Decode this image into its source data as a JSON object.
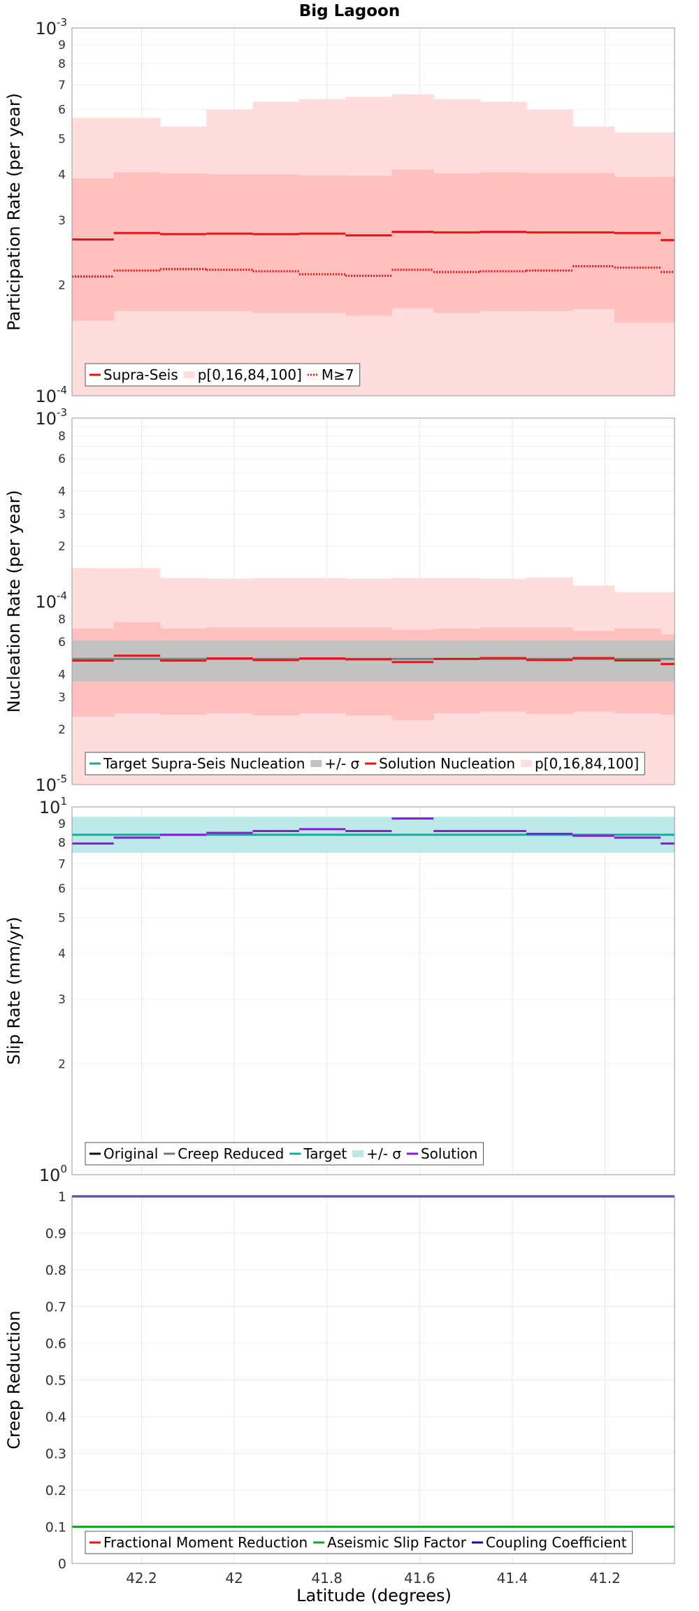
{
  "figure_title": "Big Lagoon",
  "x_axis": {
    "label": "Latitude (degrees)",
    "min": 41.05,
    "max": 42.35,
    "reversed": true,
    "ticks": [
      42.2,
      42.0,
      41.8,
      41.6,
      41.4,
      41.2
    ],
    "tick_labels": [
      "42.2",
      "42",
      "41.8",
      "41.6",
      "41.4",
      "41.2"
    ]
  },
  "colors": {
    "solution_red": "#ee1111",
    "band_outer": "#ffdddd",
    "band_inner": "#ffc0c0",
    "target_gray": "#6a8c8c",
    "sigma_gray": "#c2c2c2",
    "target_teal": "#1aa99b",
    "sigma_teal": "#bde8e8",
    "slip_solution_purple": "#8a1bd8",
    "aseismic_green": "#11aa11",
    "coupling_blue": "#1111aa"
  },
  "chart_data": [
    {
      "id": "participation",
      "type": "line",
      "ylabel": "Participation Rate (per year)",
      "yscale": "log",
      "ylim": [
        0.0001,
        0.001
      ],
      "grid": true,
      "segments": [
        {
          "x0": 42.35,
          "x1": 42.26
        },
        {
          "x0": 42.26,
          "x1": 42.16
        },
        {
          "x0": 42.16,
          "x1": 42.06
        },
        {
          "x0": 42.06,
          "x1": 41.96
        },
        {
          "x0": 41.96,
          "x1": 41.86
        },
        {
          "x0": 41.86,
          "x1": 41.76
        },
        {
          "x0": 41.76,
          "x1": 41.66
        },
        {
          "x0": 41.66,
          "x1": 41.57
        },
        {
          "x0": 41.57,
          "x1": 41.47
        },
        {
          "x0": 41.47,
          "x1": 41.37
        },
        {
          "x0": 41.37,
          "x1": 41.27
        },
        {
          "x0": 41.27,
          "x1": 41.18
        },
        {
          "x0": 41.18,
          "x1": 41.08
        },
        {
          "x0": 41.08,
          "x1": 41.05
        }
      ],
      "series": [
        {
          "name": "p[0,16,84,100]",
          "kind": "band",
          "color": "#ffdddd",
          "low": [
            0.0001,
            0.0001,
            0.0001,
            0.0001,
            0.0001,
            0.0001,
            0.0001,
            0.0001,
            0.0001,
            0.0001,
            0.0001,
            0.0001,
            0.0001,
            0.0001
          ],
          "high": [
            0.00057,
            0.00057,
            0.00054,
            0.0006,
            0.00063,
            0.00064,
            0.00065,
            0.00066,
            0.00064,
            0.00063,
            0.0006,
            0.00054,
            0.00052,
            0.00052
          ]
        },
        {
          "name": "",
          "kind": "band",
          "color": "#ffc0c0",
          "low": [
            0.00016,
            0.00017,
            0.00017,
            0.00017,
            0.000168,
            0.000168,
            0.000165,
            0.000173,
            0.000168,
            0.00017,
            0.00017,
            0.000172,
            0.000158,
            0.000158
          ],
          "high": [
            0.00039,
            0.000405,
            0.000402,
            0.0004,
            0.0004,
            0.000398,
            0.000396,
            0.000412,
            0.000402,
            0.000405,
            0.000403,
            0.000403,
            0.000394,
            0.000394
          ]
        },
        {
          "name": "Supra-Seis",
          "kind": "step",
          "color": "#ee1111",
          "dash": "",
          "values": [
            0.000266,
            0.000277,
            0.000275,
            0.000276,
            0.000275,
            0.000276,
            0.000273,
            0.000279,
            0.000278,
            0.000279,
            0.000278,
            0.000278,
            0.000277,
            0.000265
          ]
        },
        {
          "name": "M≥7",
          "kind": "step",
          "color": "#ee1111",
          "dash": "2,2",
          "values": [
            0.000211,
            0.000219,
            0.000221,
            0.00022,
            0.000218,
            0.000214,
            0.000212,
            0.00022,
            0.000217,
            0.000218,
            0.000219,
            0.000225,
            0.000223,
            0.000217
          ]
        }
      ],
      "legend": {
        "placement": "lower-left",
        "entries": [
          {
            "label": "Supra-Seis",
            "kind": "line",
            "color": "#ee1111",
            "dash": ""
          },
          {
            "label": "p[0,16,84,100]",
            "kind": "swatch",
            "color": "#ffdddd"
          },
          {
            "label": "M≥7",
            "kind": "line",
            "color": "#ee1111",
            "dash": "2,2"
          }
        ]
      }
    },
    {
      "id": "nucleation",
      "type": "line",
      "ylabel": "Nucleation Rate (per year)",
      "yscale": "log",
      "ylim": [
        1e-05,
        0.001
      ],
      "grid": true,
      "segments": [
        {
          "x0": 42.35,
          "x1": 42.26
        },
        {
          "x0": 42.26,
          "x1": 42.16
        },
        {
          "x0": 42.16,
          "x1": 42.06
        },
        {
          "x0": 42.06,
          "x1": 41.96
        },
        {
          "x0": 41.96,
          "x1": 41.86
        },
        {
          "x0": 41.86,
          "x1": 41.76
        },
        {
          "x0": 41.76,
          "x1": 41.66
        },
        {
          "x0": 41.66,
          "x1": 41.57
        },
        {
          "x0": 41.57,
          "x1": 41.47
        },
        {
          "x0": 41.47,
          "x1": 41.37
        },
        {
          "x0": 41.37,
          "x1": 41.27
        },
        {
          "x0": 41.27,
          "x1": 41.18
        },
        {
          "x0": 41.18,
          "x1": 41.08
        },
        {
          "x0": 41.08,
          "x1": 41.05
        }
      ],
      "series": [
        {
          "name": "p[0,16,84,100]",
          "kind": "band",
          "color": "#ffdddd",
          "low": [
            1e-05,
            1e-05,
            1e-05,
            1e-05,
            1e-05,
            1e-05,
            1e-05,
            1e-05,
            1e-05,
            1e-05,
            1e-05,
            1e-05,
            1e-05,
            1e-05
          ],
          "high": [
            0.000152,
            0.000152,
            0.000134,
            0.000133,
            0.000134,
            0.000134,
            0.000133,
            0.000134,
            0.000134,
            0.000133,
            0.000135,
            0.000122,
            0.000112,
            0.000112
          ]
        },
        {
          "name": "",
          "kind": "band",
          "color": "#ffc0c0",
          "low": [
            2.35e-05,
            2.45e-05,
            2.4e-05,
            2.45e-05,
            2.38e-05,
            2.45e-05,
            2.38e-05,
            2.25e-05,
            2.45e-05,
            2.5e-05,
            2.43e-05,
            2.5e-05,
            2.45e-05,
            2.4e-05
          ],
          "high": [
            7.1e-05,
            7.7e-05,
            7.1e-05,
            7.2e-05,
            7.2e-05,
            7.2e-05,
            7.2e-05,
            7e-05,
            7.1e-05,
            7.2e-05,
            7.2e-05,
            6.9e-05,
            7.1e-05,
            6.6e-05
          ]
        },
        {
          "name": "+/- σ",
          "kind": "band",
          "color": "#c2c2c2",
          "low": [
            3.65e-05,
            3.65e-05,
            3.65e-05,
            3.65e-05,
            3.65e-05,
            3.65e-05,
            3.65e-05,
            3.65e-05,
            3.65e-05,
            3.65e-05,
            3.65e-05,
            3.65e-05,
            3.65e-05,
            3.65e-05
          ],
          "high": [
            6.1e-05,
            6.1e-05,
            6.1e-05,
            6.1e-05,
            6.1e-05,
            6.1e-05,
            6.1e-05,
            6.1e-05,
            6.1e-05,
            6.1e-05,
            6.1e-05,
            6.1e-05,
            6.1e-05,
            6.1e-05
          ]
        },
        {
          "name": "Target Supra-Seis Nucleation",
          "kind": "step",
          "color": "#6a8c8c",
          "dash": "",
          "values": [
            4.85e-05,
            4.85e-05,
            4.85e-05,
            4.85e-05,
            4.85e-05,
            4.85e-05,
            4.85e-05,
            4.85e-05,
            4.85e-05,
            4.85e-05,
            4.85e-05,
            4.85e-05,
            4.85e-05,
            4.85e-05
          ]
        },
        {
          "name": "Solution Nucleation",
          "kind": "step",
          "color": "#ee1111",
          "dash": "",
          "values": [
            4.75e-05,
            5.05e-05,
            4.75e-05,
            4.88e-05,
            4.78e-05,
            4.88e-05,
            4.82e-05,
            4.66e-05,
            4.85e-05,
            4.9e-05,
            4.78e-05,
            4.9e-05,
            4.76e-05,
            4.55e-05
          ]
        }
      ],
      "legend": {
        "placement": "lower-left",
        "entries": [
          {
            "label": "Target Supra-Seis Nucleation",
            "kind": "line",
            "color": "#1aa99b",
            "dash": ""
          },
          {
            "label": "+/- σ",
            "kind": "swatch",
            "color": "#c2c2c2"
          },
          {
            "label": "Solution Nucleation",
            "kind": "line",
            "color": "#ee1111",
            "dash": ""
          },
          {
            "label": "p[0,16,84,100]",
            "kind": "swatch",
            "color": "#ffdddd"
          }
        ]
      }
    },
    {
      "id": "slip",
      "type": "line",
      "ylabel": "Slip Rate (mm/yr)",
      "yscale": "log",
      "ylim": [
        1,
        10
      ],
      "grid": true,
      "segments": [
        {
          "x0": 42.35,
          "x1": 42.26
        },
        {
          "x0": 42.26,
          "x1": 42.16
        },
        {
          "x0": 42.16,
          "x1": 42.06
        },
        {
          "x0": 42.06,
          "x1": 41.96
        },
        {
          "x0": 41.96,
          "x1": 41.86
        },
        {
          "x0": 41.86,
          "x1": 41.76
        },
        {
          "x0": 41.76,
          "x1": 41.66
        },
        {
          "x0": 41.66,
          "x1": 41.57
        },
        {
          "x0": 41.57,
          "x1": 41.47
        },
        {
          "x0": 41.47,
          "x1": 41.37
        },
        {
          "x0": 41.37,
          "x1": 41.27
        },
        {
          "x0": 41.27,
          "x1": 41.18
        },
        {
          "x0": 41.18,
          "x1": 41.08
        },
        {
          "x0": 41.08,
          "x1": 41.05
        }
      ],
      "series": [
        {
          "name": "+/- σ",
          "kind": "band",
          "color": "#bde8e8",
          "low": [
            7.5,
            7.5,
            7.5,
            7.5,
            7.5,
            7.5,
            7.5,
            7.5,
            7.5,
            7.5,
            7.5,
            7.5,
            7.5,
            7.5
          ],
          "high": [
            9.4,
            9.4,
            9.4,
            9.4,
            9.4,
            9.4,
            9.4,
            9.4,
            9.4,
            9.4,
            9.4,
            9.4,
            9.4,
            9.4
          ]
        },
        {
          "name": "Target",
          "kind": "step",
          "color": "#1aa99b",
          "dash": "",
          "values": [
            8.4,
            8.4,
            8.4,
            8.4,
            8.4,
            8.4,
            8.4,
            8.4,
            8.4,
            8.4,
            8.4,
            8.4,
            8.4,
            8.4
          ]
        },
        {
          "name": "Solution",
          "kind": "step",
          "color": "#8a1bd8",
          "dash": "",
          "values": [
            7.95,
            8.25,
            8.4,
            8.5,
            8.6,
            8.7,
            8.6,
            9.3,
            8.6,
            8.6,
            8.45,
            8.35,
            8.25,
            7.95
          ]
        }
      ],
      "legend": {
        "placement": "lower-left",
        "entries": [
          {
            "label": "Original",
            "kind": "line",
            "color": "#111111",
            "dash": ""
          },
          {
            "label": "Creep Reduced",
            "kind": "line",
            "color": "#777777",
            "dash": ""
          },
          {
            "label": "Target",
            "kind": "line",
            "color": "#1aa99b",
            "dash": ""
          },
          {
            "label": "+/- σ",
            "kind": "swatch",
            "color": "#bde8e8"
          },
          {
            "label": "Solution",
            "kind": "line",
            "color": "#8a1bd8",
            "dash": ""
          }
        ]
      }
    },
    {
      "id": "creep",
      "type": "line",
      "ylabel": "Creep Reduction",
      "yscale": "linear",
      "ylim": [
        0,
        1
      ],
      "grid": true,
      "ytick_values": [
        0,
        0.1,
        0.2,
        0.3,
        0.4,
        0.5,
        0.6,
        0.7,
        0.8,
        0.9,
        1
      ],
      "ytick_labels": [
        "0",
        "0.1",
        "0.2",
        "0.3",
        "0.4",
        "0.5",
        "0.6",
        "0.7",
        "0.8",
        "0.9",
        "1"
      ],
      "segments": [
        {
          "x0": 42.35,
          "x1": 41.05
        }
      ],
      "series": [
        {
          "name": "Aseismic Slip Factor",
          "kind": "step",
          "color": "#11aa11",
          "dash": "",
          "values": [
            0.1
          ]
        },
        {
          "name": "Coupling Coefficient",
          "kind": "step",
          "color": "#1111aa",
          "dash": "",
          "values": [
            1.0
          ]
        }
      ],
      "legend": {
        "placement": "lower-left",
        "entries": [
          {
            "label": "Fractional Moment Reduction",
            "kind": "line",
            "color": "#ee1111",
            "dash": ""
          },
          {
            "label": "Aseismic Slip Factor",
            "kind": "line",
            "color": "#11aa11",
            "dash": ""
          },
          {
            "label": "Coupling Coefficient",
            "kind": "line",
            "color": "#1111aa",
            "dash": ""
          }
        ]
      }
    }
  ]
}
